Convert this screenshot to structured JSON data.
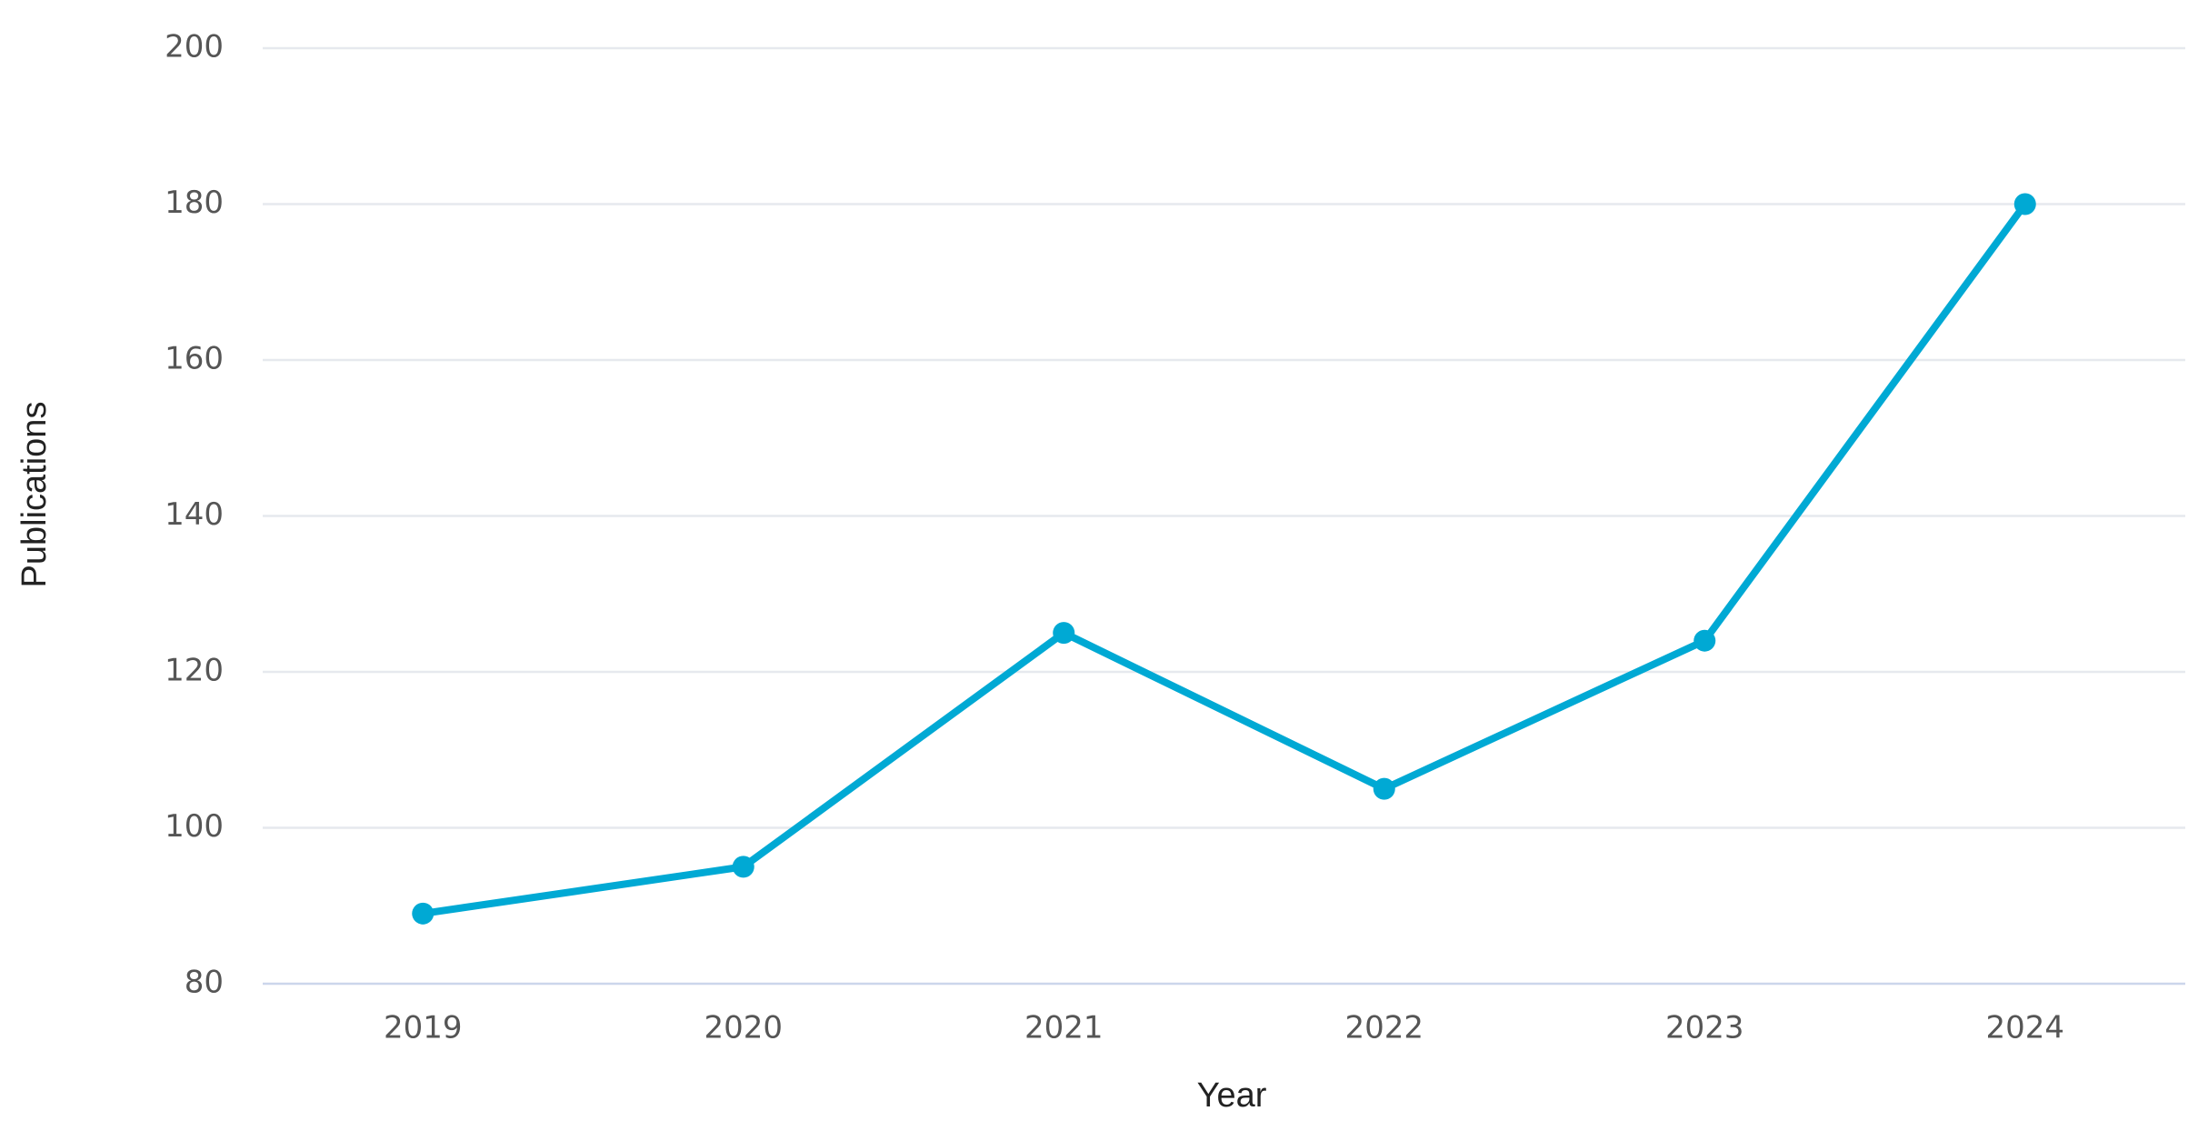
{
  "chart_data": {
    "type": "line",
    "x_label": "Year",
    "y_label": "Publications",
    "categories": [
      "2019",
      "2020",
      "2021",
      "2022",
      "2023",
      "2024"
    ],
    "series": [
      {
        "name": "Publications",
        "color": "#00a9d4",
        "values": [
          89,
          95,
          125,
          105,
          124,
          180
        ]
      }
    ],
    "ylim": [
      80,
      200
    ],
    "yticks": [
      80,
      100,
      120,
      140,
      160,
      180,
      200
    ],
    "grid": true
  }
}
